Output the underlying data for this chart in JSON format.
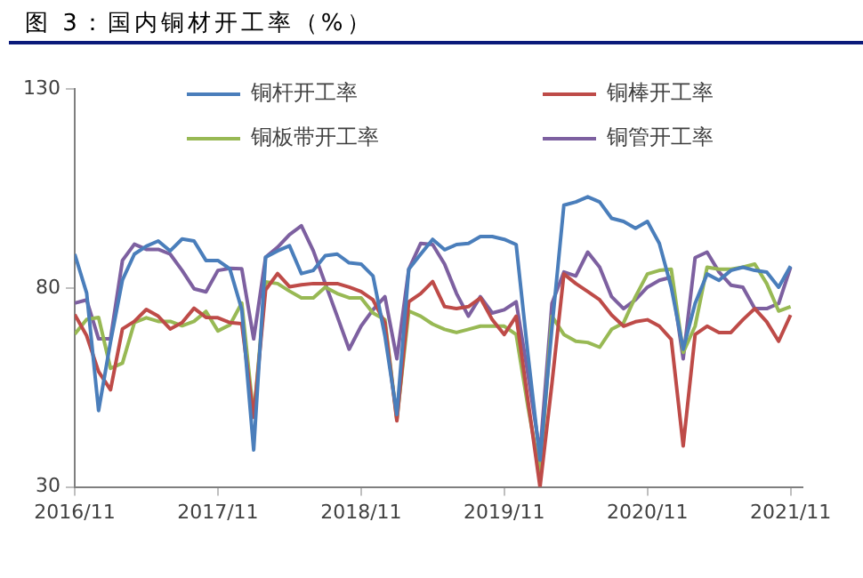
{
  "chart_data": {
    "type": "line",
    "title": "图 3：国内铜材开工率（%）",
    "x": [
      "2016-11",
      "2016-12",
      "2017-01",
      "2017-02",
      "2017-03",
      "2017-04",
      "2017-05",
      "2017-06",
      "2017-07",
      "2017-08",
      "2017-09",
      "2017-10",
      "2017-11",
      "2017-12",
      "2018-01",
      "2018-02",
      "2018-03",
      "2018-04",
      "2018-05",
      "2018-06",
      "2018-07",
      "2018-08",
      "2018-09",
      "2018-10",
      "2018-11",
      "2018-12",
      "2019-01",
      "2019-02",
      "2019-03",
      "2019-04",
      "2019-05",
      "2019-06",
      "2019-07",
      "2019-08",
      "2019-09",
      "2019-10",
      "2019-11",
      "2019-12",
      "2020-01",
      "2020-02",
      "2020-03",
      "2020-04",
      "2020-05",
      "2020-06",
      "2020-07",
      "2020-08",
      "2020-09",
      "2020-10",
      "2020-11",
      "2020-12",
      "2021-01",
      "2021-02",
      "2021-03",
      "2021-04",
      "2021-05",
      "2021-06",
      "2021-07",
      "2021-08",
      "2021-09",
      "2021-10",
      "2021-11"
    ],
    "series": [
      {
        "name": "铜杆开工率",
        "color": "#4a7ebb",
        "values": [
          88.5,
          78.7,
          49.2,
          66.4,
          82,
          88.5,
          90.5,
          91.8,
          89.3,
          92.3,
          91.8,
          86.9,
          86.9,
          84.8,
          74.6,
          39.3,
          87.7,
          89.3,
          90.6,
          83.6,
          84.4,
          88.1,
          88.5,
          86.3,
          86,
          83,
          68,
          48.2,
          84.7,
          88.5,
          92.2,
          89.6,
          90.9,
          91.2,
          92.9,
          92.9,
          92.2,
          90.9,
          63,
          36.7,
          70,
          100.8,
          101.6,
          102.9,
          101.6,
          97.5,
          96.7,
          95,
          96.7,
          91.2,
          80.2,
          64.6,
          76.1,
          83.5,
          81.9,
          84.4,
          85.2,
          84.4,
          84,
          80.2,
          85.5
        ]
      },
      {
        "name": "铜棒开工率",
        "color": "#be4b48",
        "values": [
          73.3,
          68,
          59,
          54.4,
          69.7,
          71.6,
          74.6,
          72.9,
          69.7,
          71.3,
          74.9,
          72.6,
          72.5,
          71.3,
          71,
          47.5,
          79.5,
          83.6,
          80.3,
          80.8,
          81.1,
          81.1,
          81.1,
          80.2,
          79.1,
          77,
          71.2,
          46.6,
          76.5,
          78.6,
          81.6,
          75.3,
          74.8,
          75.3,
          77.5,
          72,
          68.3,
          72.9,
          51.5,
          30,
          56,
          83.5,
          81.1,
          79.1,
          77,
          73.2,
          70.4,
          71.5,
          72,
          70.4,
          67.1,
          40.3,
          68.3,
          70.4,
          68.8,
          68.8,
          72,
          74.8,
          71.5,
          66.6,
          73.2
        ]
      },
      {
        "name": "铜板带开工率",
        "color": "#98b954",
        "values": [
          68.4,
          72.1,
          72.6,
          59.8,
          61.1,
          71.3,
          72.5,
          71.6,
          71.6,
          70.5,
          71.6,
          74.1,
          69.2,
          70.7,
          76.2,
          47.5,
          81.5,
          81.1,
          79.2,
          77.5,
          77.5,
          80.2,
          78.6,
          77.5,
          77.5,
          73.7,
          72,
          46.9,
          74.2,
          72.9,
          70.9,
          69.6,
          68.8,
          69.6,
          70.4,
          70.4,
          70.4,
          68.3,
          49.9,
          33.4,
          72.9,
          68.3,
          66.6,
          66.3,
          65.1,
          69.6,
          71.2,
          77.8,
          83.5,
          84.4,
          84.7,
          63.8,
          70.4,
          85.2,
          84.7,
          84.7,
          85.2,
          86,
          81.1,
          74.2,
          75.3
        ]
      },
      {
        "name": "铜管开工率",
        "color": "#7d60a0",
        "values": [
          76.2,
          77,
          67.2,
          67.2,
          86.9,
          91,
          89.7,
          89.7,
          88.5,
          84.4,
          79.8,
          79,
          84.4,
          84.9,
          84.8,
          67.2,
          87.7,
          90.2,
          93.4,
          95.6,
          89.3,
          81.1,
          72.9,
          64.6,
          70.4,
          74.5,
          77.8,
          62.2,
          84.7,
          91.2,
          90.9,
          86,
          78.6,
          72.9,
          77.8,
          73.7,
          74.5,
          76.5,
          58.1,
          38.4,
          76.1,
          84,
          83,
          89,
          85.2,
          77.8,
          74.8,
          77,
          80.2,
          81.9,
          82.7,
          62.2,
          87.6,
          89,
          84,
          80.7,
          80.2,
          74.8,
          74.8,
          76.1,
          85.2
        ]
      }
    ],
    "xlim": [
      "2016-11",
      "2021-12"
    ],
    "xticks": [
      {
        "value": "2016-11",
        "label": "2016/11"
      },
      {
        "value": "2017-11",
        "label": "2017/11"
      },
      {
        "value": "2018-11",
        "label": "2018/11"
      },
      {
        "value": "2019-11",
        "label": "2019/11"
      },
      {
        "value": "2020-11",
        "label": "2020/11"
      },
      {
        "value": "2021-11",
        "label": "2021/11"
      }
    ],
    "ylim": [
      30,
      130
    ],
    "yticks": [
      30,
      80,
      130
    ],
    "legend": "top",
    "line_style": "solid"
  }
}
